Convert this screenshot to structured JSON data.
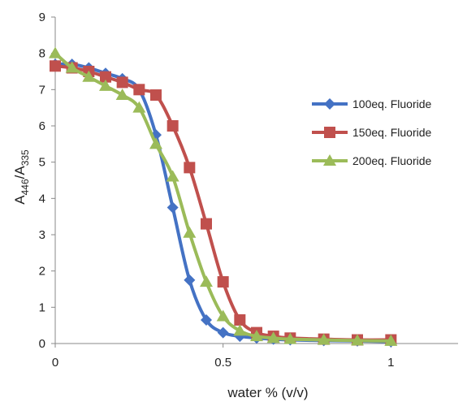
{
  "chart_data": {
    "type": "line",
    "title": "",
    "xlabel": "water % (v/v)",
    "ylabel_main": "A",
    "ylabel_sub1": "446",
    "ylabel_sep": "/A",
    "ylabel_sub2": "335",
    "xlim": [
      0,
      1.2
    ],
    "ylim": [
      0,
      9
    ],
    "xticks": [
      0,
      0.5,
      1
    ],
    "xtick_labels": [
      "0",
      "0.5",
      "1"
    ],
    "yticks": [
      0,
      1,
      2,
      3,
      4,
      5,
      6,
      7,
      8,
      9
    ],
    "ytick_labels": [
      "0",
      "1",
      "2",
      "3",
      "4",
      "5",
      "6",
      "7",
      "8",
      "9"
    ],
    "grid": false,
    "legend_position": "right",
    "series": [
      {
        "name": "100eq. Fluoride",
        "color": "#4472c4",
        "marker": "diamond",
        "x": [
          0,
          0.05,
          0.1,
          0.15,
          0.2,
          0.25,
          0.3,
          0.35,
          0.4,
          0.45,
          0.5,
          0.55,
          0.6,
          0.65,
          0.7,
          0.8,
          0.9,
          1.0
        ],
        "y": [
          7.7,
          7.7,
          7.6,
          7.45,
          7.3,
          7.0,
          5.75,
          3.75,
          1.75,
          0.65,
          0.3,
          0.2,
          0.15,
          0.12,
          0.1,
          0.08,
          0.07,
          0.05
        ]
      },
      {
        "name": "150eq. Fluoride",
        "color": "#c0504d",
        "marker": "square",
        "x": [
          0,
          0.05,
          0.1,
          0.15,
          0.2,
          0.25,
          0.3,
          0.35,
          0.4,
          0.45,
          0.5,
          0.55,
          0.6,
          0.65,
          0.7,
          0.8,
          0.9,
          1.0
        ],
        "y": [
          7.65,
          7.6,
          7.5,
          7.35,
          7.2,
          7.0,
          6.85,
          6.0,
          4.85,
          3.3,
          1.7,
          0.65,
          0.3,
          0.2,
          0.15,
          0.12,
          0.1,
          0.1
        ]
      },
      {
        "name": "200eq. Fluoride",
        "color": "#9bbb59",
        "marker": "triangle",
        "x": [
          0,
          0.05,
          0.1,
          0.15,
          0.2,
          0.25,
          0.3,
          0.35,
          0.4,
          0.45,
          0.5,
          0.55,
          0.6,
          0.65,
          0.7,
          0.8,
          0.9,
          1.0
        ],
        "y": [
          8.0,
          7.6,
          7.35,
          7.1,
          6.85,
          6.5,
          5.5,
          4.6,
          3.05,
          1.7,
          0.75,
          0.35,
          0.2,
          0.15,
          0.12,
          0.1,
          0.08,
          0.07
        ]
      }
    ]
  }
}
